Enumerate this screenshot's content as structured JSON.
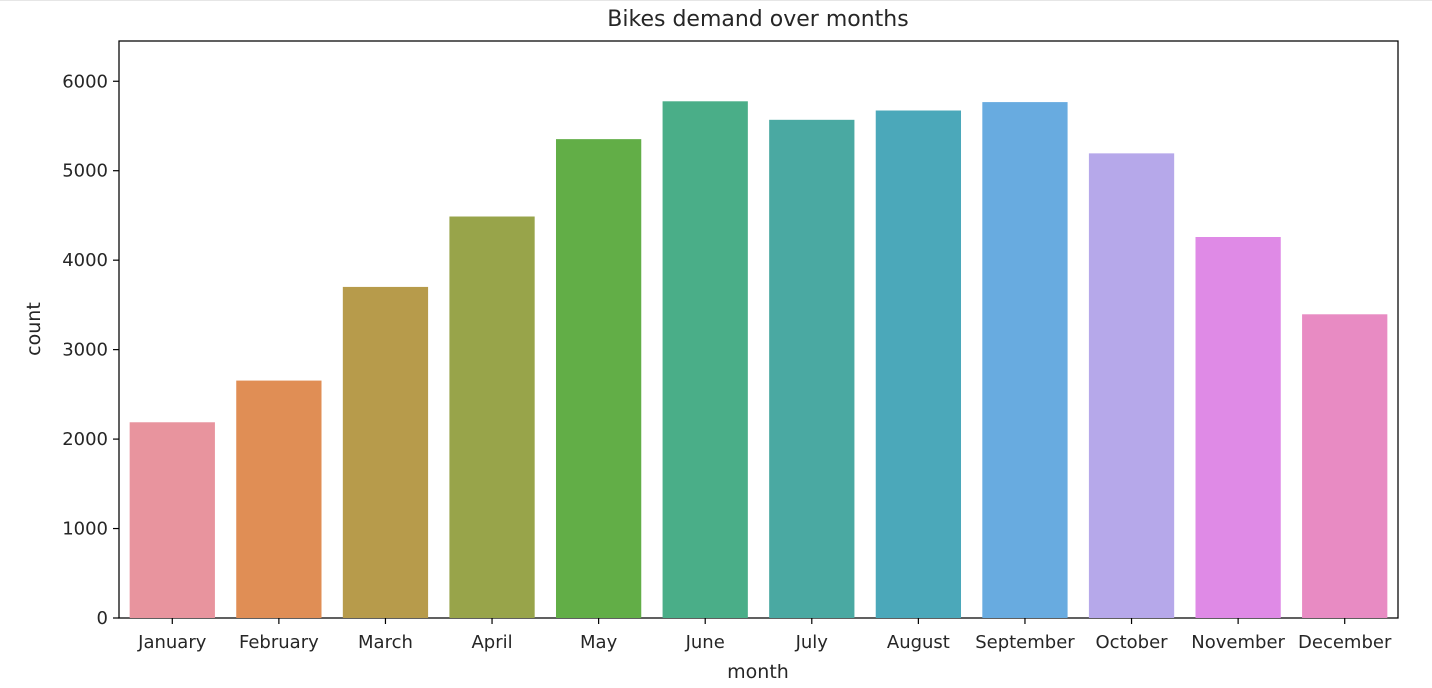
{
  "chart_data": {
    "type": "bar",
    "title": "Bikes demand over months",
    "xlabel": "month",
    "ylabel": "count",
    "categories": [
      "January",
      "February",
      "March",
      "April",
      "May",
      "June",
      "July",
      "August",
      "September",
      "October",
      "November",
      "December"
    ],
    "values": [
      2188,
      2654,
      3701,
      4488,
      5353,
      5776,
      5569,
      5673,
      5767,
      5194,
      4259,
      3395
    ],
    "colors": [
      "#e8949e",
      "#e08e55",
      "#b79b4b",
      "#98a44a",
      "#62ae47",
      "#4aae88",
      "#4aa9a2",
      "#4ba8ba",
      "#68abe0",
      "#b6a8ea",
      "#df8ae6",
      "#e88bc3"
    ],
    "yticks": [
      0,
      1000,
      2000,
      3000,
      4000,
      5000,
      6000
    ],
    "ylim": [
      0,
      6450
    ],
    "grid": false,
    "legend": "none"
  }
}
